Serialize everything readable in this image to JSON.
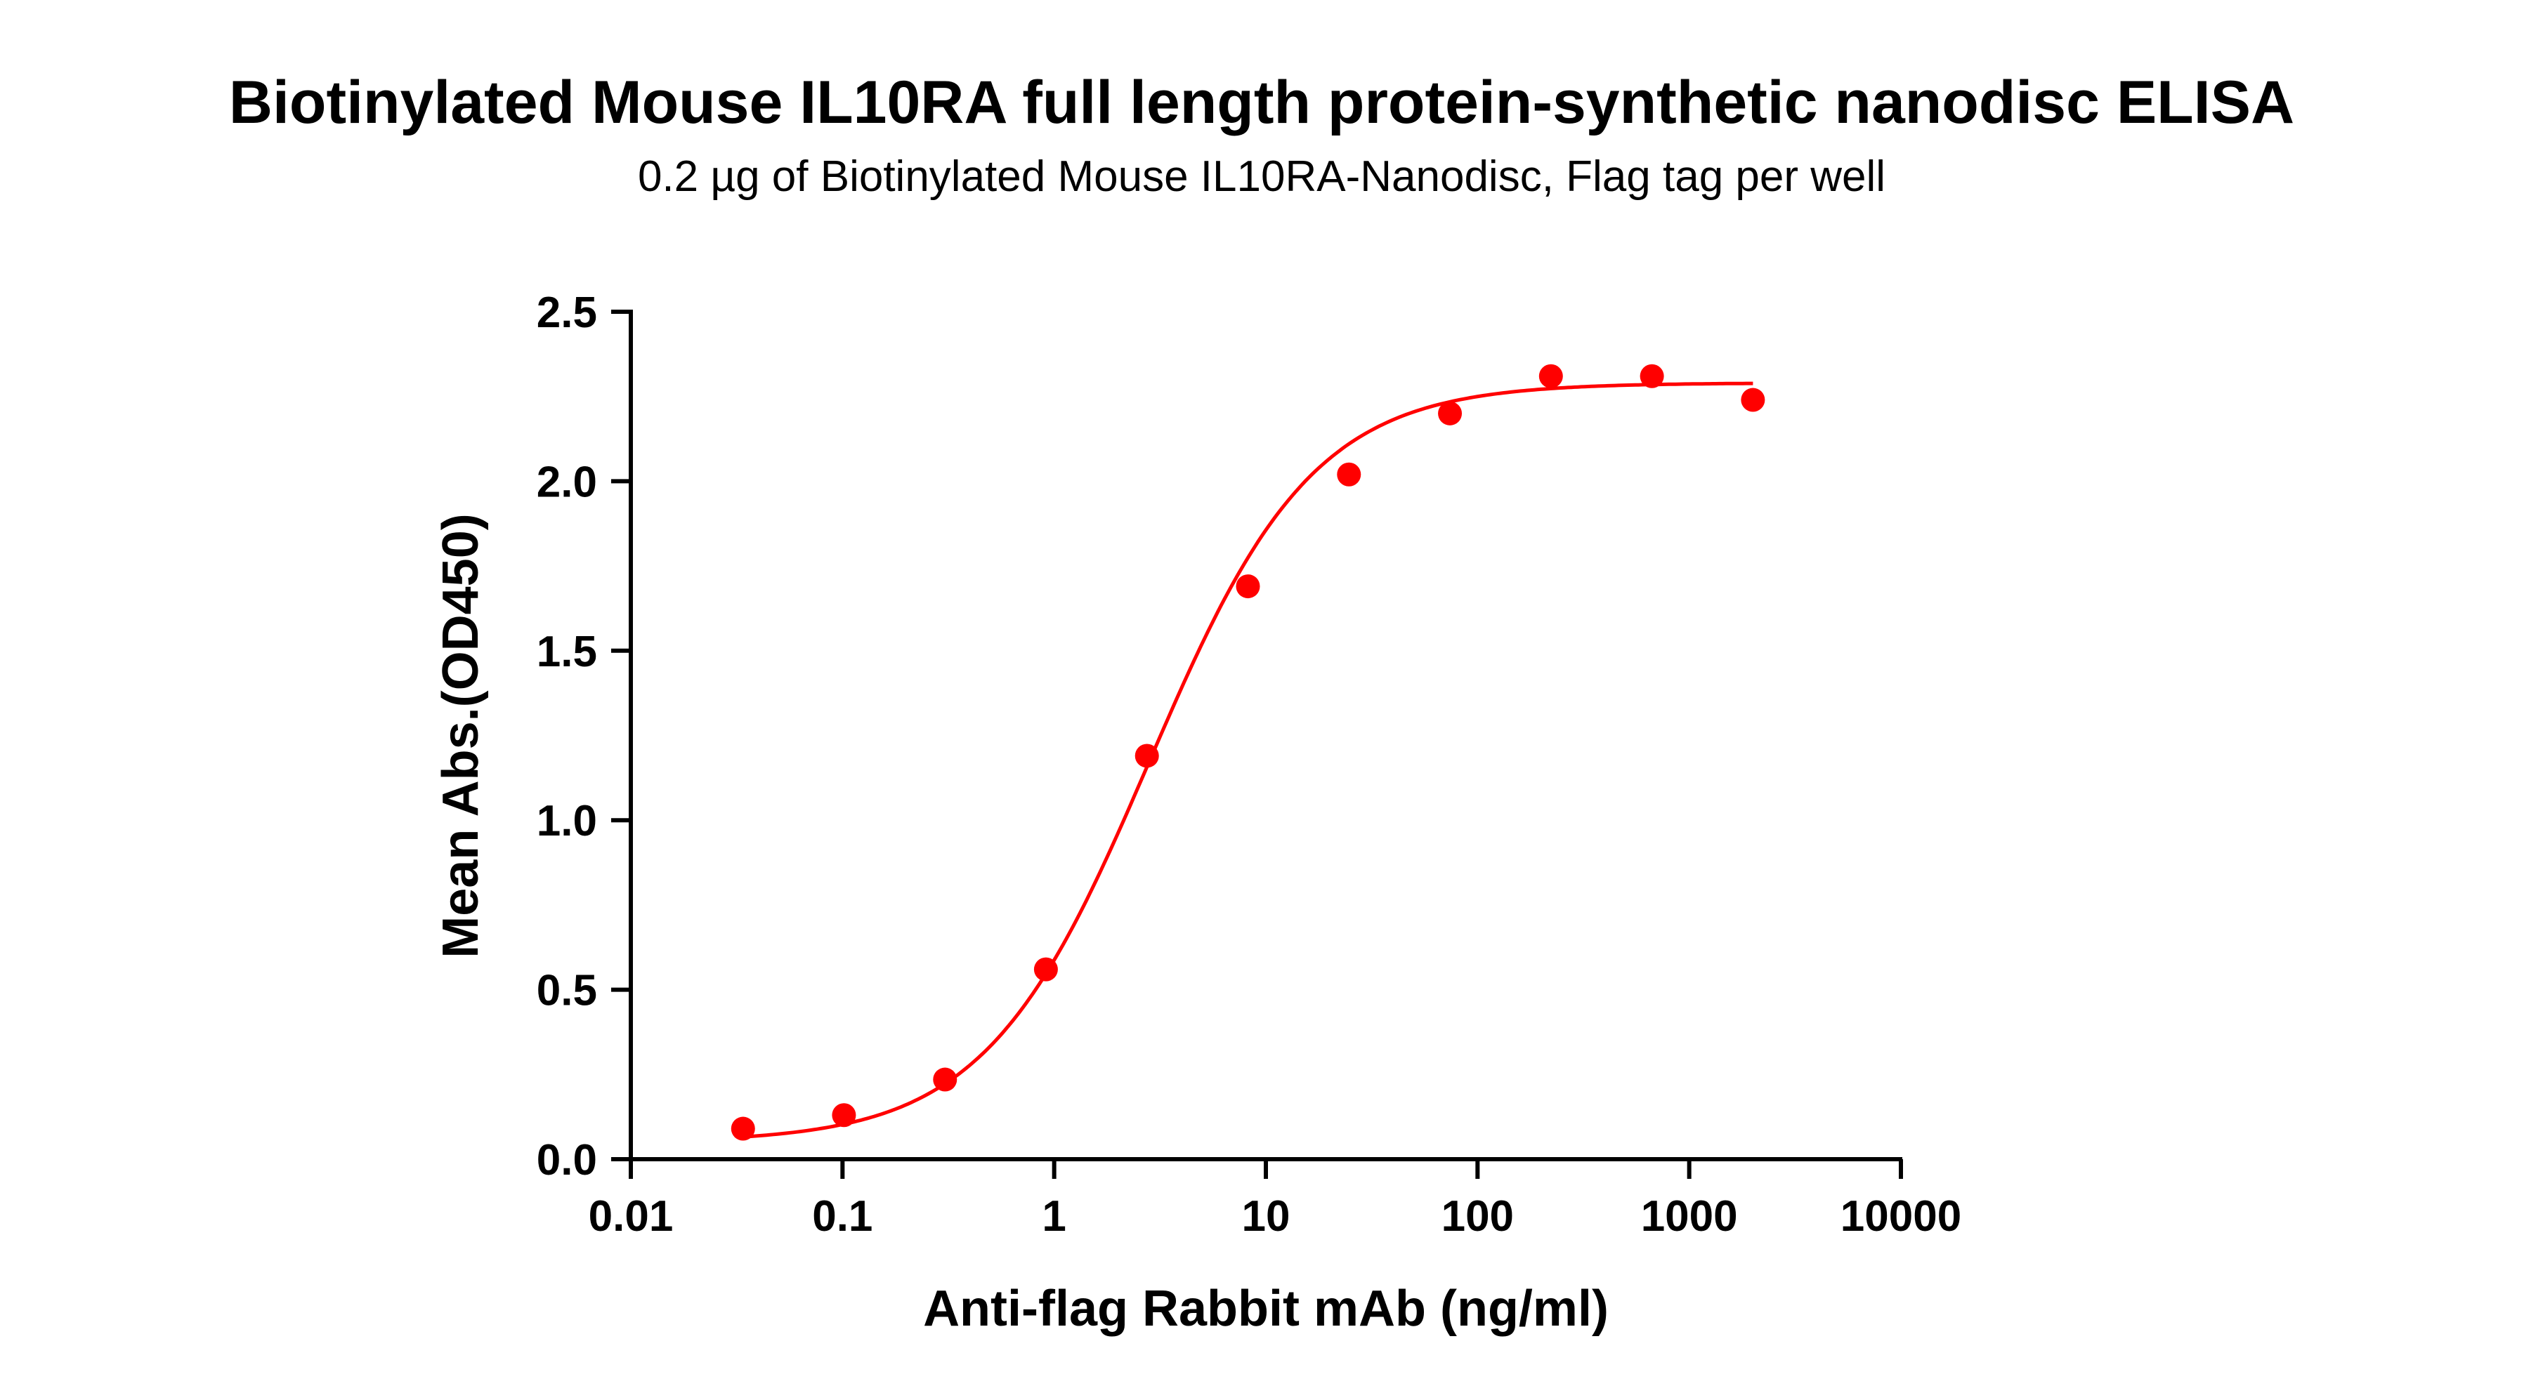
{
  "chart_data": {
    "type": "scatter",
    "title": "Biotinylated Mouse IL10RA full length protein-synthetic nanodisc ELISA",
    "subtitle": "0.2 µg of Biotinylated Mouse IL10RA-Nanodisc, Flag tag per well",
    "xlabel": "Anti-flag Rabbit mAb (ng/ml)",
    "ylabel": "Mean Abs.(OD450)",
    "xscale": "log",
    "xlim": [
      0.01,
      10000
    ],
    "ylim": [
      0,
      2.5
    ],
    "xticks": [
      "0.01",
      "0.1",
      "1",
      "10",
      "100",
      "1000",
      "10000"
    ],
    "yticks": [
      "0.0",
      "0.5",
      "1.0",
      "1.5",
      "2.0",
      "2.5"
    ],
    "grid": false,
    "color": "#ff0000",
    "series": [
      {
        "x": [
          0.0339,
          0.1016,
          0.305,
          0.914,
          2.743,
          8.23,
          24.69,
          74.07,
          222.2,
          666.7,
          2000
        ],
        "y": [
          0.09,
          0.13,
          0.235,
          0.56,
          1.19,
          1.69,
          2.02,
          2.2,
          2.31,
          2.31,
          2.24
        ],
        "fit": "sigmoidal curve"
      }
    ]
  }
}
